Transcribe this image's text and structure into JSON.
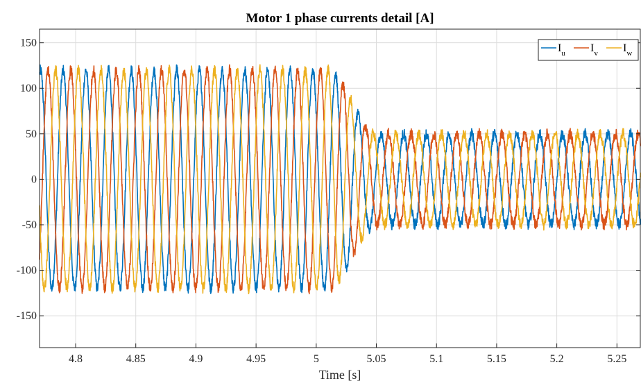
{
  "chart_data": {
    "type": "line",
    "title": "Motor 1 phase currents detail [A]",
    "xlabel": "Time [s]",
    "ylabel": "",
    "xlim": [
      4.77,
      5.27
    ],
    "ylim": [
      -185,
      165
    ],
    "x_ticks": [
      4.8,
      4.85,
      4.9,
      4.95,
      5.0,
      5.05,
      5.1,
      5.15,
      5.2,
      5.25
    ],
    "x_tick_labels": [
      "4.8",
      "4.85",
      "4.9",
      "4.95",
      "5",
      "5.05",
      "5.1",
      "5.15",
      "5.2",
      "5.25"
    ],
    "y_ticks": [
      150,
      100,
      50,
      0,
      -50,
      -100,
      -150
    ],
    "y_tick_labels": [
      "150",
      "100",
      "50",
      "0",
      "-50",
      "-100",
      "-150"
    ],
    "grid": true,
    "legend_position": "top-right",
    "legend_orientation": "horizontal",
    "series": [
      {
        "name": "I_u",
        "label_main": "I",
        "label_sub": "u",
        "color": "#0072BD",
        "amplitude_before": 120,
        "amplitude_after": 50,
        "frequency_hz": 53,
        "phase_deg": 0
      },
      {
        "name": "I_v",
        "label_main": "I",
        "label_sub": "v",
        "color": "#D95319",
        "amplitude_before": 120,
        "amplitude_after": 50,
        "frequency_hz": 53,
        "phase_deg": -120
      },
      {
        "name": "I_w",
        "label_main": "I",
        "label_sub": "w",
        "color": "#EDB120",
        "amplitude_before": 120,
        "amplitude_after": 50,
        "frequency_hz": 53,
        "phase_deg": 120
      }
    ],
    "transition": {
      "start": 5.01,
      "end": 5.05
    }
  }
}
